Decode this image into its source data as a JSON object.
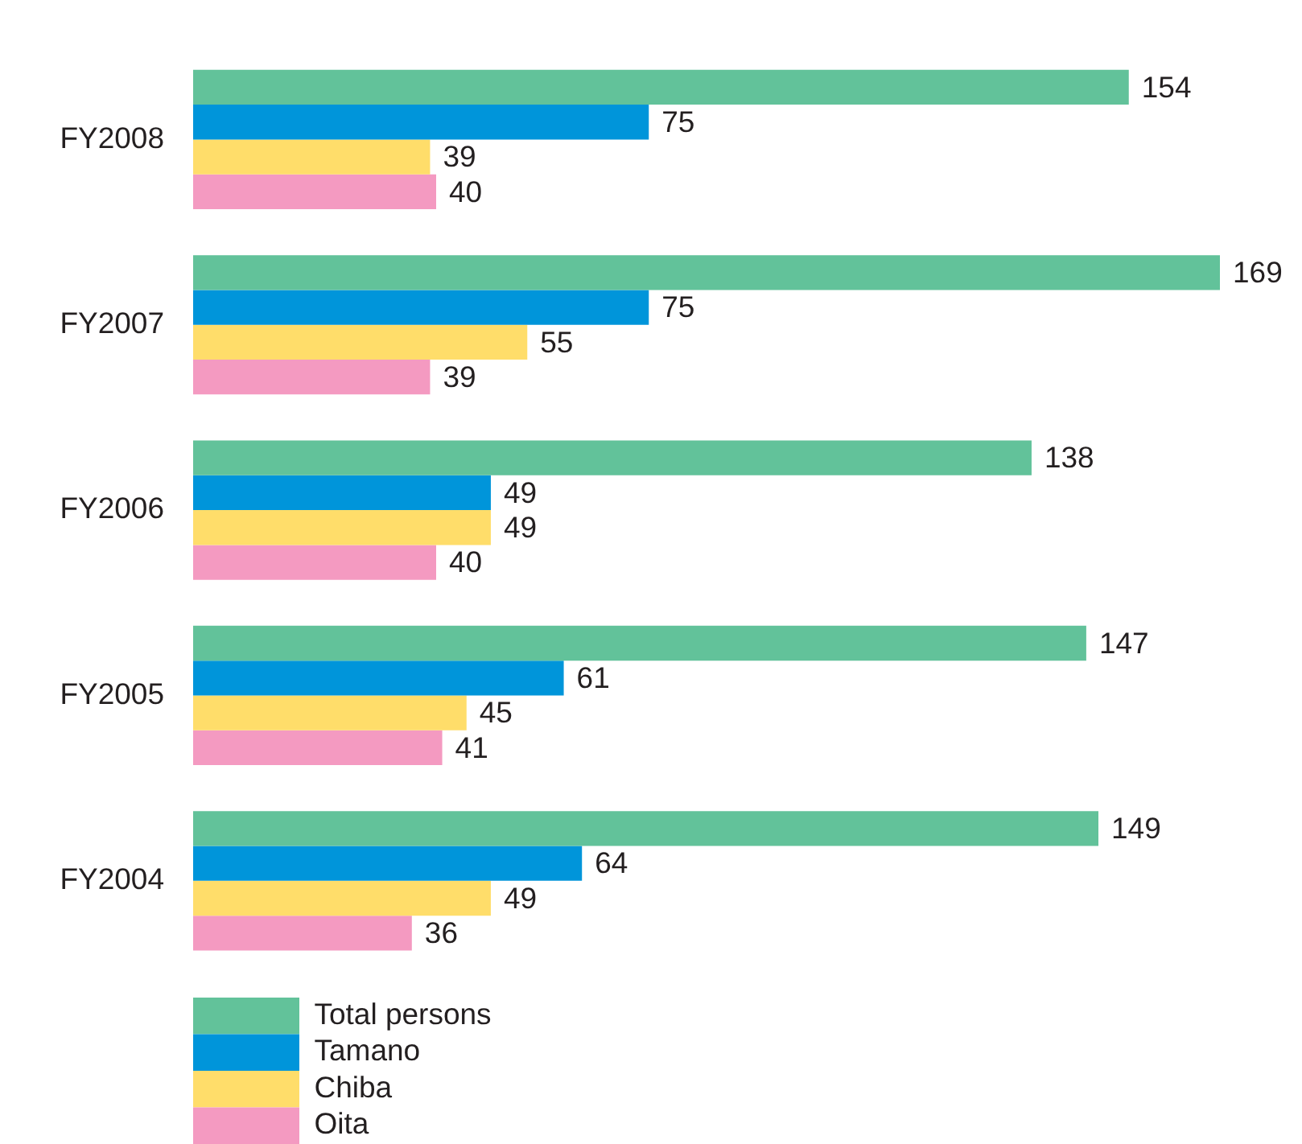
{
  "chart_data": {
    "type": "bar",
    "orientation": "horizontal",
    "categories": [
      "FY2008",
      "FY2007",
      "FY2006",
      "FY2005",
      "FY2004"
    ],
    "series": [
      {
        "name": "Total persons",
        "color": "#62c29a",
        "values": [
          154,
          169,
          138,
          147,
          149
        ]
      },
      {
        "name": "Tamano",
        "color": "#0095da",
        "values": [
          75,
          75,
          49,
          61,
          64
        ]
      },
      {
        "name": "Chiba",
        "color": "#ffdd6a",
        "values": [
          39,
          55,
          49,
          45,
          49
        ]
      },
      {
        "name": "Oita",
        "color": "#f49ac1",
        "values": [
          40,
          39,
          40,
          41,
          36
        ]
      }
    ],
    "data_labels": true,
    "legend": "bottom",
    "grid": false,
    "tick_labels": "y"
  }
}
